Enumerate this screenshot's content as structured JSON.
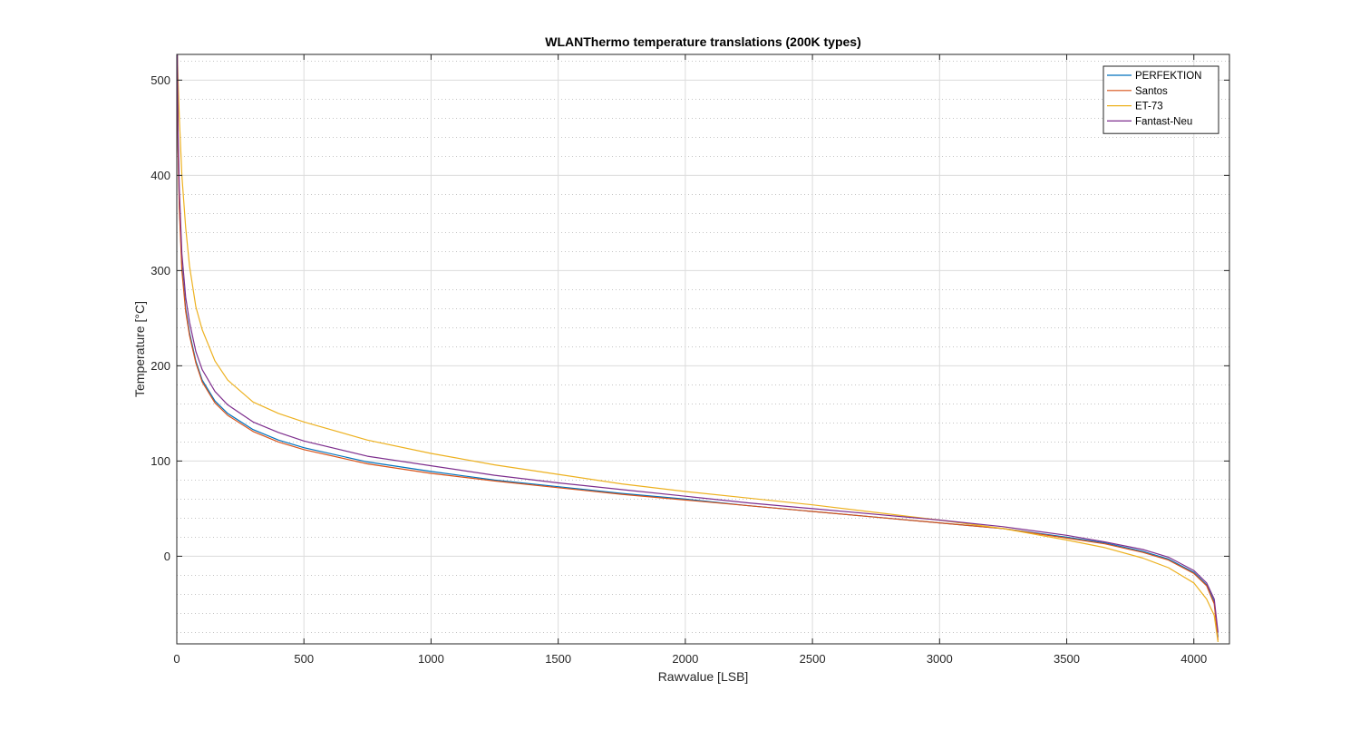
{
  "chart_data": {
    "type": "line",
    "title": "WLANThermo temperature translations (200K types)",
    "xlabel": "Rawvalue [LSB]",
    "ylabel": "Temperature [°C]",
    "xlim": [
      0,
      4140
    ],
    "ylim": [
      -92,
      527
    ],
    "xticks": [
      0,
      500,
      1000,
      1500,
      2000,
      2500,
      3000,
      3500,
      4000
    ],
    "yticks": [
      0,
      100,
      200,
      300,
      400,
      500
    ],
    "grid": true,
    "minor_grid": true,
    "legend_position": "top-right",
    "series": [
      {
        "name": "PERFEKTION",
        "color": "#0072bd",
        "x": [
          2,
          5,
          10,
          20,
          35,
          50,
          75,
          100,
          150,
          200,
          300,
          400,
          500,
          750,
          1000,
          1250,
          1500,
          1750,
          2000,
          2250,
          2500,
          2750,
          3000,
          3250,
          3500,
          3650,
          3800,
          3900,
          4000,
          4050,
          4080,
          4095
        ],
        "y": [
          527,
          430,
          370,
          305,
          260,
          235,
          205,
          185,
          163,
          150,
          133,
          122,
          114,
          99,
          89,
          80,
          73,
          66,
          60,
          53,
          47,
          41,
          35,
          29,
          20,
          14,
          5,
          -3,
          -17,
          -30,
          -48,
          -85
        ]
      },
      {
        "name": "Santos",
        "color": "#d95319",
        "x": [
          2,
          5,
          10,
          20,
          35,
          50,
          75,
          100,
          150,
          200,
          300,
          400,
          500,
          750,
          1000,
          1250,
          1500,
          1750,
          2000,
          2250,
          2500,
          2750,
          3000,
          3250,
          3500,
          3650,
          3800,
          3900,
          4000,
          4050,
          4080,
          4095
        ],
        "y": [
          520,
          425,
          365,
          300,
          257,
          232,
          203,
          183,
          161,
          148,
          131,
          120,
          112,
          97,
          87,
          79,
          72,
          65,
          59,
          53,
          47,
          41,
          35,
          29,
          19,
          13,
          4,
          -4,
          -18,
          -31,
          -50,
          -88
        ]
      },
      {
        "name": "ET-73",
        "color": "#edb120",
        "x": [
          2,
          5,
          10,
          20,
          35,
          50,
          75,
          100,
          150,
          200,
          300,
          400,
          500,
          750,
          1000,
          1250,
          1500,
          1750,
          2000,
          2250,
          2500,
          2750,
          3000,
          3250,
          3500,
          3650,
          3800,
          3900,
          4000,
          4050,
          4080,
          4095
        ],
        "y": [
          527,
          500,
          460,
          400,
          345,
          305,
          262,
          238,
          205,
          185,
          162,
          150,
          141,
          122,
          108,
          96,
          86,
          76,
          68,
          61,
          54,
          46,
          38,
          29,
          17,
          9,
          -2,
          -12,
          -28,
          -45,
          -62,
          -90
        ]
      },
      {
        "name": "Fantast-Neu",
        "color": "#7e2f8e",
        "x": [
          2,
          5,
          10,
          20,
          35,
          50,
          75,
          100,
          150,
          200,
          300,
          400,
          500,
          750,
          1000,
          1250,
          1500,
          1750,
          2000,
          2250,
          2500,
          2750,
          3000,
          3250,
          3500,
          3650,
          3800,
          3900,
          4000,
          4050,
          4080,
          4095
        ],
        "y": [
          527,
          445,
          385,
          318,
          272,
          246,
          215,
          196,
          173,
          159,
          141,
          130,
          121,
          105,
          95,
          85,
          77,
          70,
          63,
          56,
          50,
          44,
          38,
          31,
          22,
          15,
          7,
          -1,
          -15,
          -28,
          -45,
          -80
        ]
      }
    ]
  }
}
